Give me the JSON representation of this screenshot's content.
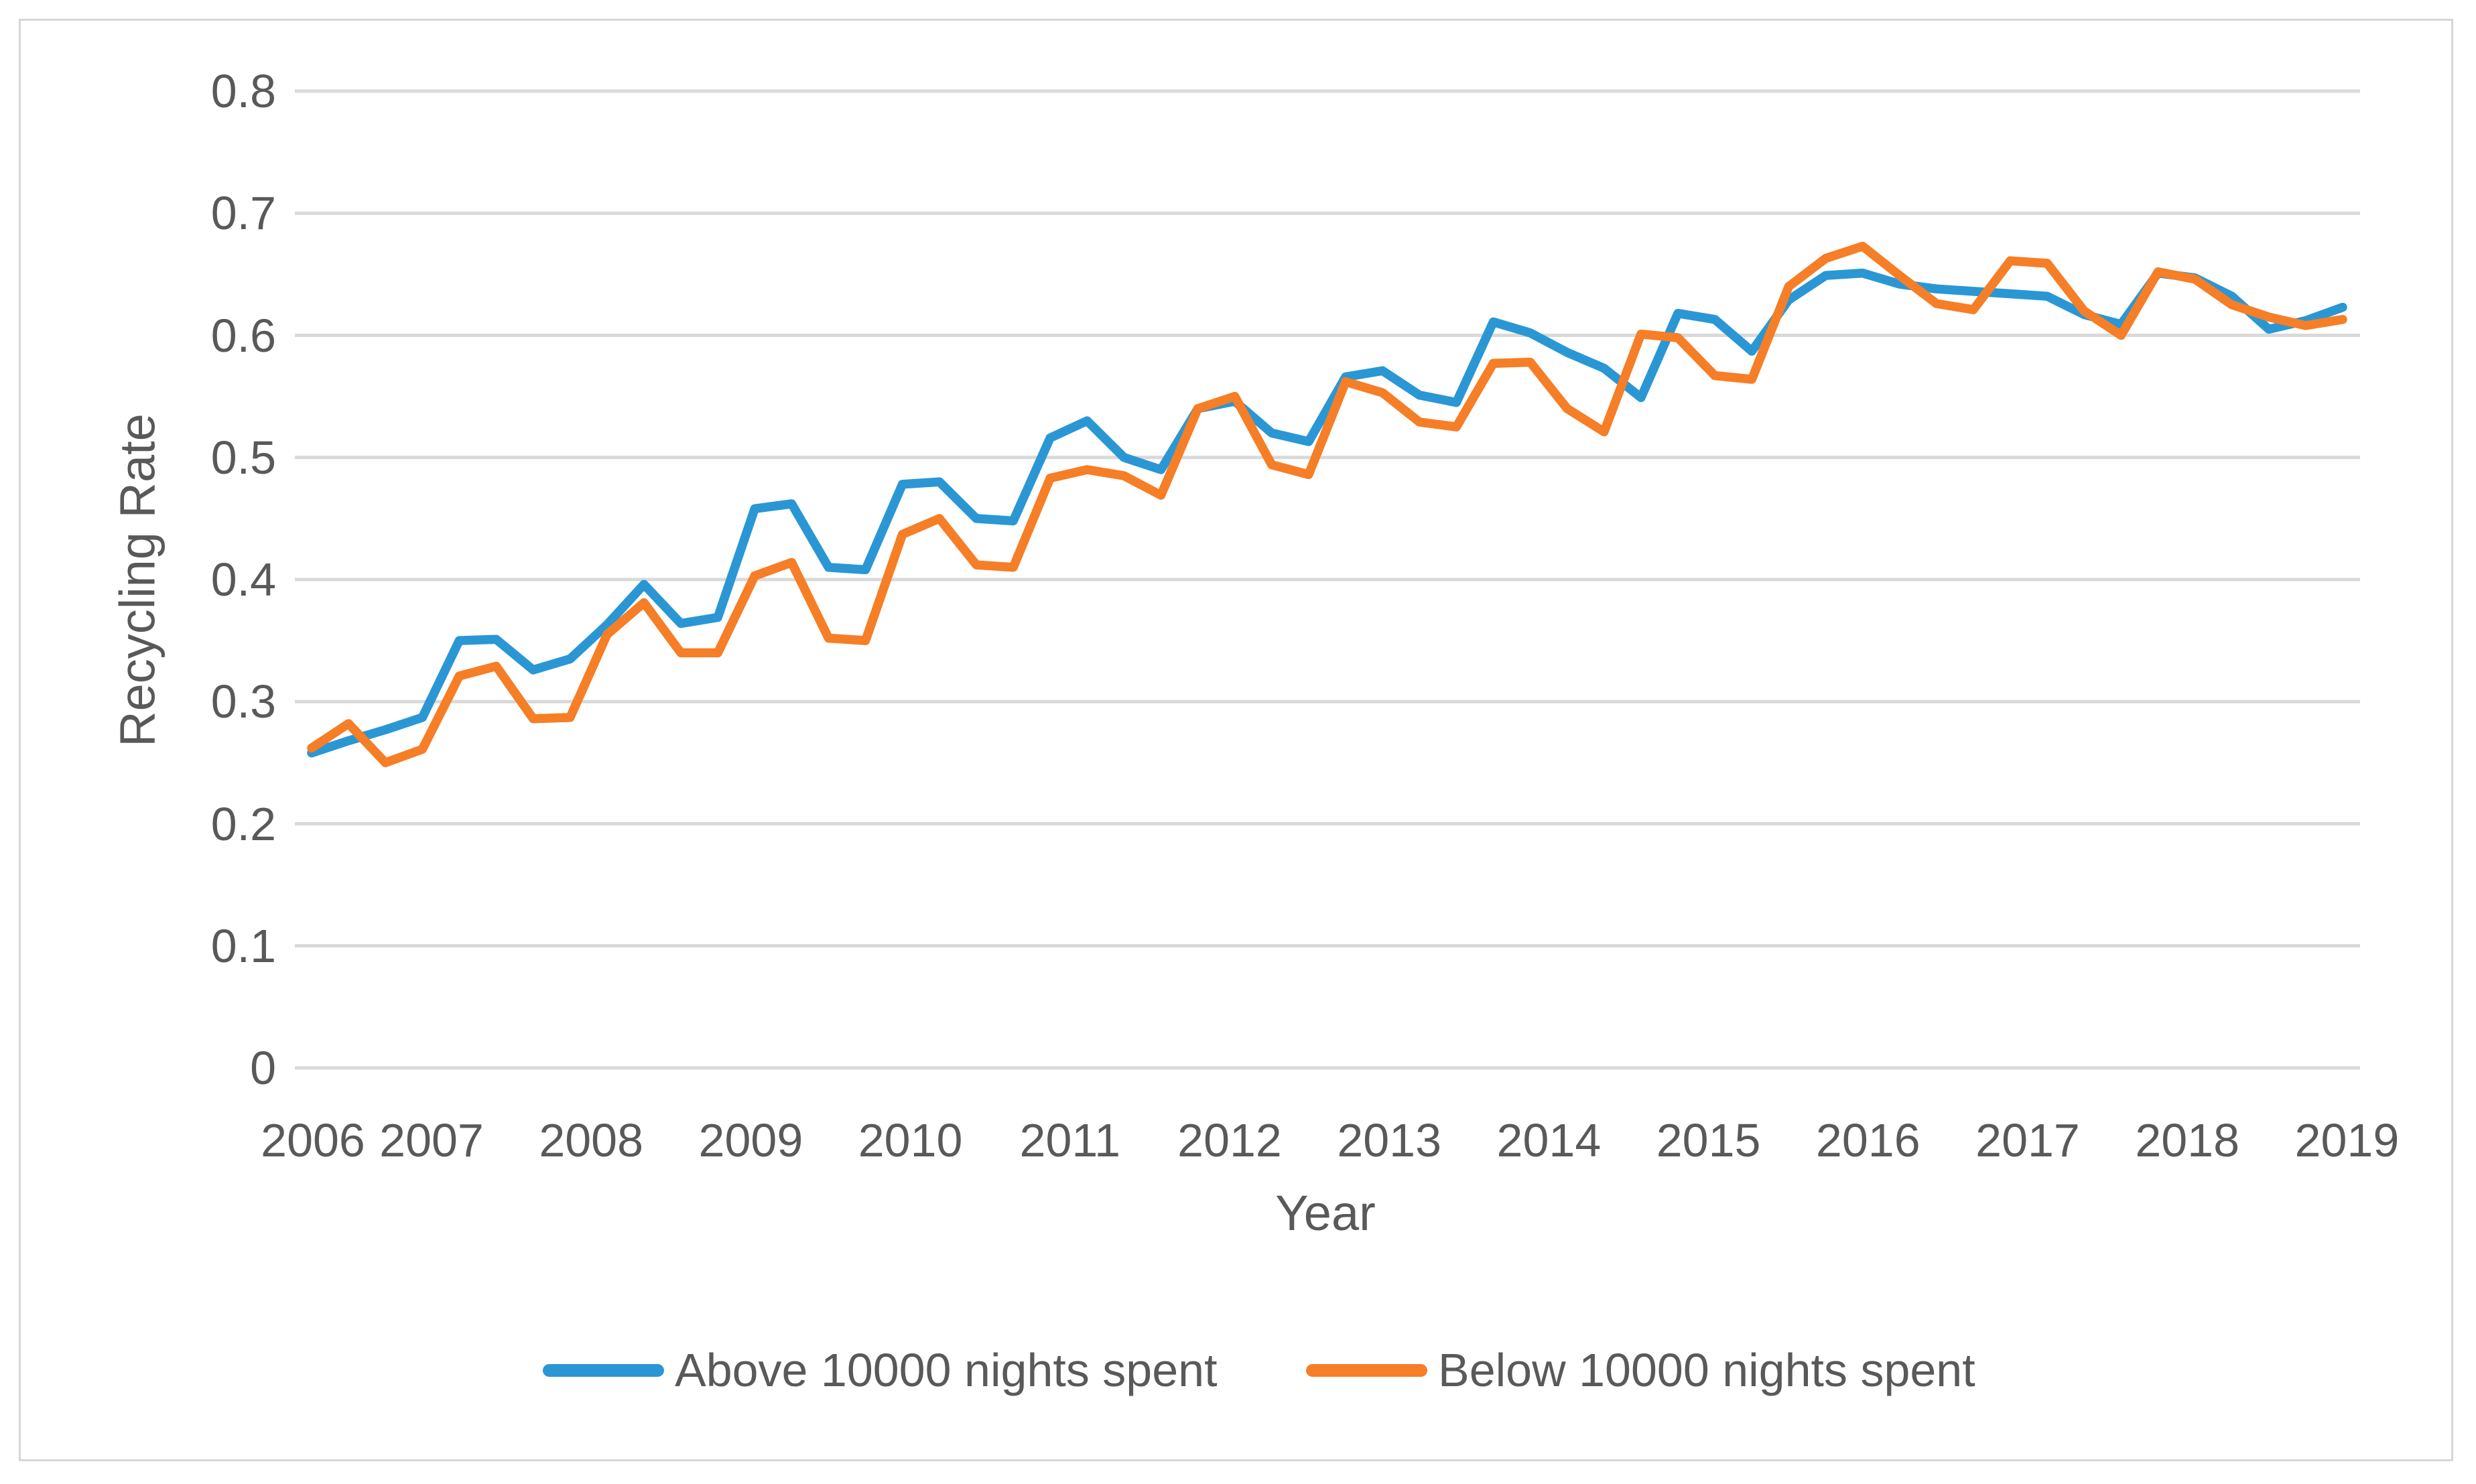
{
  "page": {
    "background": "#ffffff",
    "border_color": "#d6d6d6",
    "text_color": "#595959",
    "gridline_color": "#d9d9d9"
  },
  "chart_data": {
    "type": "line",
    "title": "",
    "xlabel": "Year",
    "ylabel": "Recycling Rate",
    "ylim": [
      0,
      0.8
    ],
    "ytick_labels": [
      "0",
      "0.1",
      "0.2",
      "0.3",
      "0.4",
      "0.5",
      "0.6",
      "0.7",
      "0.8"
    ],
    "x_tick_labels": [
      "2006",
      "2007",
      "2008",
      "2009",
      "2010",
      "2011",
      "2012",
      "2013",
      "2014",
      "2015",
      "2016",
      "2017",
      "2018",
      "2019"
    ],
    "points_per_year": 4,
    "grid": true,
    "legend_position": "bottom",
    "series": [
      {
        "name": "Above 10000 nights spent",
        "color": "#2a97d4",
        "values": [
          0.258,
          0.268,
          0.277,
          0.287,
          0.35,
          0.351,
          0.326,
          0.335,
          0.363,
          0.396,
          0.364,
          0.369,
          0.458,
          0.462,
          0.41,
          0.408,
          0.478,
          0.48,
          0.45,
          0.448,
          0.516,
          0.53,
          0.5,
          0.49,
          0.54,
          0.546,
          0.52,
          0.513,
          0.566,
          0.571,
          0.551,
          0.545,
          0.611,
          0.602,
          0.586,
          0.573,
          0.549,
          0.618,
          0.613,
          0.587,
          0.629,
          0.649,
          0.651,
          0.642,
          0.638,
          0.636,
          0.634,
          0.632,
          0.617,
          0.609,
          0.651,
          0.647,
          0.632,
          0.605,
          0.612,
          0.623
        ]
      },
      {
        "name": "Below 10000 nights spent",
        "color": "#f57e27",
        "values": [
          0.262,
          0.282,
          0.25,
          0.261,
          0.321,
          0.329,
          0.286,
          0.287,
          0.355,
          0.381,
          0.34,
          0.34,
          0.403,
          0.414,
          0.352,
          0.35,
          0.437,
          0.45,
          0.412,
          0.41,
          0.483,
          0.49,
          0.485,
          0.469,
          0.54,
          0.55,
          0.494,
          0.486,
          0.562,
          0.553,
          0.529,
          0.525,
          0.577,
          0.578,
          0.54,
          0.521,
          0.601,
          0.598,
          0.567,
          0.564,
          0.64,
          0.663,
          0.673,
          0.649,
          0.626,
          0.621,
          0.661,
          0.659,
          0.62,
          0.6,
          0.652,
          0.646,
          0.625,
          0.615,
          0.608,
          0.613
        ]
      }
    ]
  }
}
